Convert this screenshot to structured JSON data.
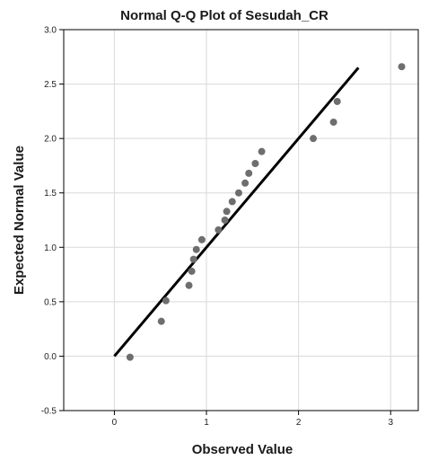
{
  "chart_data": {
    "type": "scatter",
    "title": "Normal Q-Q Plot of Sesudah_CR",
    "xlabel": "Observed Value",
    "ylabel": "Expected Normal Value",
    "xlim": [
      -0.55,
      3.3
    ],
    "ylim": [
      -0.5,
      3.0
    ],
    "x_ticks": [
      "0",
      "1",
      "2",
      "3"
    ],
    "y_ticks": [
      "-0.5",
      "0.0",
      "0.5",
      "1.0",
      "1.5",
      "2.0",
      "2.5",
      "3.0"
    ],
    "grid": true,
    "points": {
      "x": [
        0.17,
        0.51,
        0.56,
        0.81,
        0.84,
        0.86,
        0.89,
        0.95,
        1.13,
        1.2,
        1.22,
        1.28,
        1.35,
        1.42,
        1.46,
        1.53,
        1.6,
        2.16,
        2.38,
        2.42,
        3.12
      ],
      "y": [
        -0.01,
        0.32,
        0.51,
        0.65,
        0.78,
        0.89,
        0.98,
        1.07,
        1.16,
        1.25,
        1.33,
        1.42,
        1.5,
        1.59,
        1.68,
        1.77,
        1.88,
        2.0,
        2.15,
        2.34,
        2.66
      ]
    },
    "reference_line": {
      "x": [
        0.0,
        2.65
      ],
      "y": [
        0.0,
        2.65
      ]
    },
    "colors": {
      "points": "#6e6e6e",
      "line": "#000000",
      "grid": "#d9d9d9"
    }
  }
}
